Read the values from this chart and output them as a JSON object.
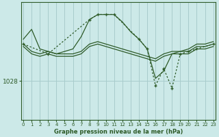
{
  "title": "Graphe pression niveau de la mer (hPa)",
  "background_color": "#cce9e8",
  "plot_bg_color": "#cce9e8",
  "grid_color": "#a8cccc",
  "line_color": "#2d5a27",
  "x_ticks": [
    0,
    1,
    2,
    3,
    4,
    5,
    6,
    7,
    8,
    9,
    10,
    11,
    12,
    13,
    14,
    15,
    16,
    17,
    18,
    19,
    20,
    21,
    22,
    23
  ],
  "y_label_value": 1028,
  "ylim": [
    1020,
    1044
  ],
  "xlim": [
    -0.3,
    23.3
  ],
  "series_a": [
    1036.5,
    1038.5,
    1034.5,
    1034.0,
    1033.5,
    1034.0,
    1034.5,
    1037.0,
    1040.5,
    1041.5,
    1041.5,
    1041.5,
    1040.0,
    1038.0,
    1036.5,
    1034.5,
    1028.5,
    1030.0,
    1033.5,
    1034.0,
    1034.5,
    1035.5,
    1035.5,
    1036.0
  ],
  "series_b": [
    1035.5,
    1034.0,
    1033.5,
    1034.0,
    1033.5,
    1033.5,
    1033.5,
    1034.0,
    1035.5,
    1036.0,
    1035.5,
    1035.0,
    1034.5,
    1034.0,
    1033.5,
    1033.0,
    1032.5,
    1033.5,
    1034.0,
    1034.0,
    1034.0,
    1035.0,
    1035.0,
    1035.5
  ],
  "series_c": [
    1035.0,
    1033.5,
    1033.0,
    1033.5,
    1033.0,
    1033.0,
    1033.0,
    1033.5,
    1035.0,
    1035.5,
    1035.0,
    1034.5,
    1034.0,
    1033.5,
    1033.0,
    1032.5,
    1032.0,
    1033.0,
    1033.5,
    1033.5,
    1033.5,
    1034.5,
    1034.5,
    1035.0
  ],
  "series_d_x": [
    0,
    3,
    8,
    9,
    10,
    11,
    14,
    15,
    16,
    17,
    18,
    19,
    20,
    21,
    23
  ],
  "series_d_y": [
    1035.5,
    1033.5,
    1040.5,
    1041.5,
    1041.5,
    1041.5,
    1036.5,
    1034.5,
    1027.0,
    1030.5,
    1026.5,
    1033.5,
    1034.0,
    1034.5,
    1035.5
  ]
}
